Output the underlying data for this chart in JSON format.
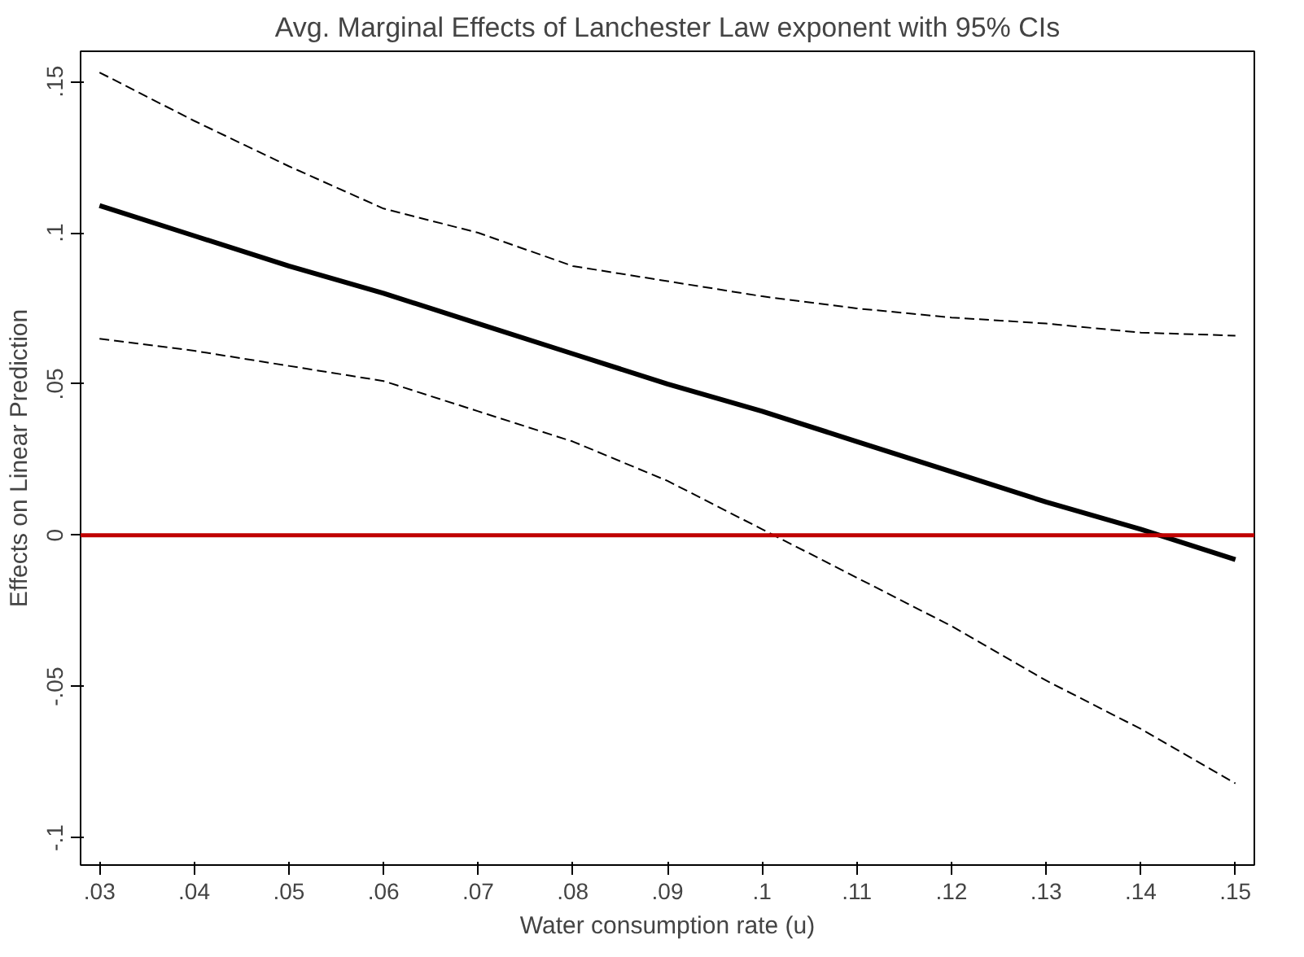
{
  "chart_data": {
    "type": "line",
    "title": "Avg. Marginal Effects of Lanchester Law exponent with 95% CIs",
    "xlabel": "Water consumption rate (u)",
    "ylabel": "Effects on Linear Prediction",
    "x": [
      0.03,
      0.04,
      0.05,
      0.06,
      0.07,
      0.08,
      0.09,
      0.1,
      0.11,
      0.12,
      0.13,
      0.14,
      0.15
    ],
    "series": [
      {
        "color": "#000000",
        "line_style": "solid",
        "values": [
          0.109,
          0.099,
          0.089,
          0.08,
          0.07,
          0.06,
          0.05,
          0.041,
          0.031,
          0.021,
          0.011,
          0.002,
          -0.008
        ]
      },
      {
        "color": "#000000",
        "line_style": "dashed",
        "values": [
          0.153,
          0.137,
          0.122,
          0.108,
          0.1,
          0.089,
          0.084,
          0.079,
          0.075,
          0.072,
          0.07,
          0.067,
          0.066
        ]
      },
      {
        "color": "#000000",
        "line_style": "dashed",
        "values": [
          0.065,
          0.061,
          0.056,
          0.051,
          0.041,
          0.031,
          0.018,
          0.002,
          -0.014,
          -0.03,
          -0.048,
          -0.064,
          -0.082
        ]
      }
    ],
    "xlim": [
      0.028,
      0.152
    ],
    "ylim": [
      -0.109,
      0.16
    ],
    "xticks": [
      {
        "value": 0.03,
        "label": ".03"
      },
      {
        "value": 0.04,
        "label": ".04"
      },
      {
        "value": 0.05,
        "label": ".05"
      },
      {
        "value": 0.06,
        "label": ".06"
      },
      {
        "value": 0.07,
        "label": ".07"
      },
      {
        "value": 0.08,
        "label": ".08"
      },
      {
        "value": 0.09,
        "label": ".09"
      },
      {
        "value": 0.1,
        "label": ".1"
      },
      {
        "value": 0.11,
        "label": ".11"
      },
      {
        "value": 0.12,
        "label": ".12"
      },
      {
        "value": 0.13,
        "label": ".13"
      },
      {
        "value": 0.14,
        "label": ".14"
      },
      {
        "value": 0.15,
        "label": ".15"
      }
    ],
    "yticks": [
      {
        "value": -0.1,
        "label": "-.1"
      },
      {
        "value": -0.05,
        "label": "-.05"
      },
      0,
      {
        "value": 0.05,
        "label": ".05"
      },
      {
        "value": 0.1,
        "label": ".1"
      },
      {
        "value": 0.15,
        "label": ".15"
      }
    ],
    "ref_lines": [
      {
        "axis": "y",
        "value": 0,
        "color": "#c00000"
      }
    ],
    "grid": false
  }
}
